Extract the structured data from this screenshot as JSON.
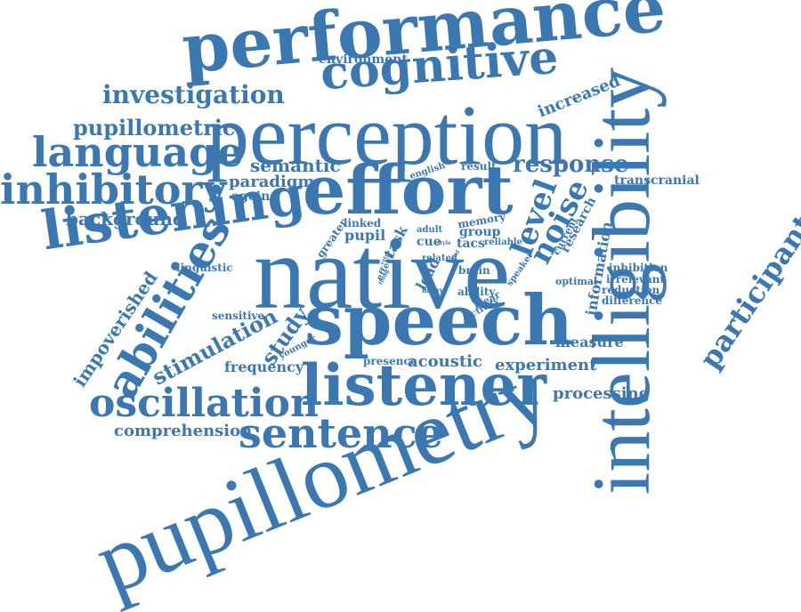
{
  "color": "#3b78b2",
  "words": {
    "performance": "performance",
    "cognitive": "cognitive",
    "environment": "environment",
    "intelligibility": "intelligibility",
    "investigation": "investigation",
    "increased": "increased",
    "perception": "perception",
    "pupillometric": "pupillometric",
    "language": "language",
    "semantic": "semantic",
    "response": "response",
    "english": "english",
    "result": "result",
    "inhibitory": "inhibitory",
    "paradigm": "paradigm",
    "effort": "effort",
    "transcranial": "transcranial",
    "ageing": "ageing",
    "background": "background",
    "listening": "listening",
    "linked": "linked",
    "memory": "memory",
    "level": "level",
    "noise": "noise",
    "research": "research",
    "greater": "greater",
    "pupil": "pupil",
    "group": "group",
    "current": "current",
    "task": "task",
    "adult": "adult",
    "cue": "cue",
    "tacs": "tacs",
    "reliable": "reliable",
    "native": "native",
    "abilities": "abilities",
    "linguistic": "linguistic",
    "effect": "effect",
    "load": "load",
    "related": "related",
    "brain": "brain",
    "style": "style",
    "retro": "retro",
    "valid": "valid",
    "thing": "thing",
    "many": "many",
    "speaker": "speaker",
    "ability": "ability",
    "clear": "clear",
    "activity": "activity",
    "inhibition": "inhibition",
    "irrelevant": "irrelevant",
    "optimal": "optimal",
    "reduction": "reduction",
    "difference": "difference",
    "information": "information",
    "participant": "participant",
    "impoverished": "impoverished",
    "sensitive": "sensitive",
    "stimulation": "stimulation",
    "speech": "speech",
    "study": "study",
    "younger": "younger",
    "measure": "measure",
    "frequency": "frequency",
    "presence": "presence",
    "acoustic": "acoustic",
    "experiment": "experiment",
    "listener": "listener",
    "processing": "processing",
    "oscillation": "oscillation",
    "comprehension": "comprehension",
    "sentence": "sentence",
    "pupillometry": "pupillometry"
  }
}
